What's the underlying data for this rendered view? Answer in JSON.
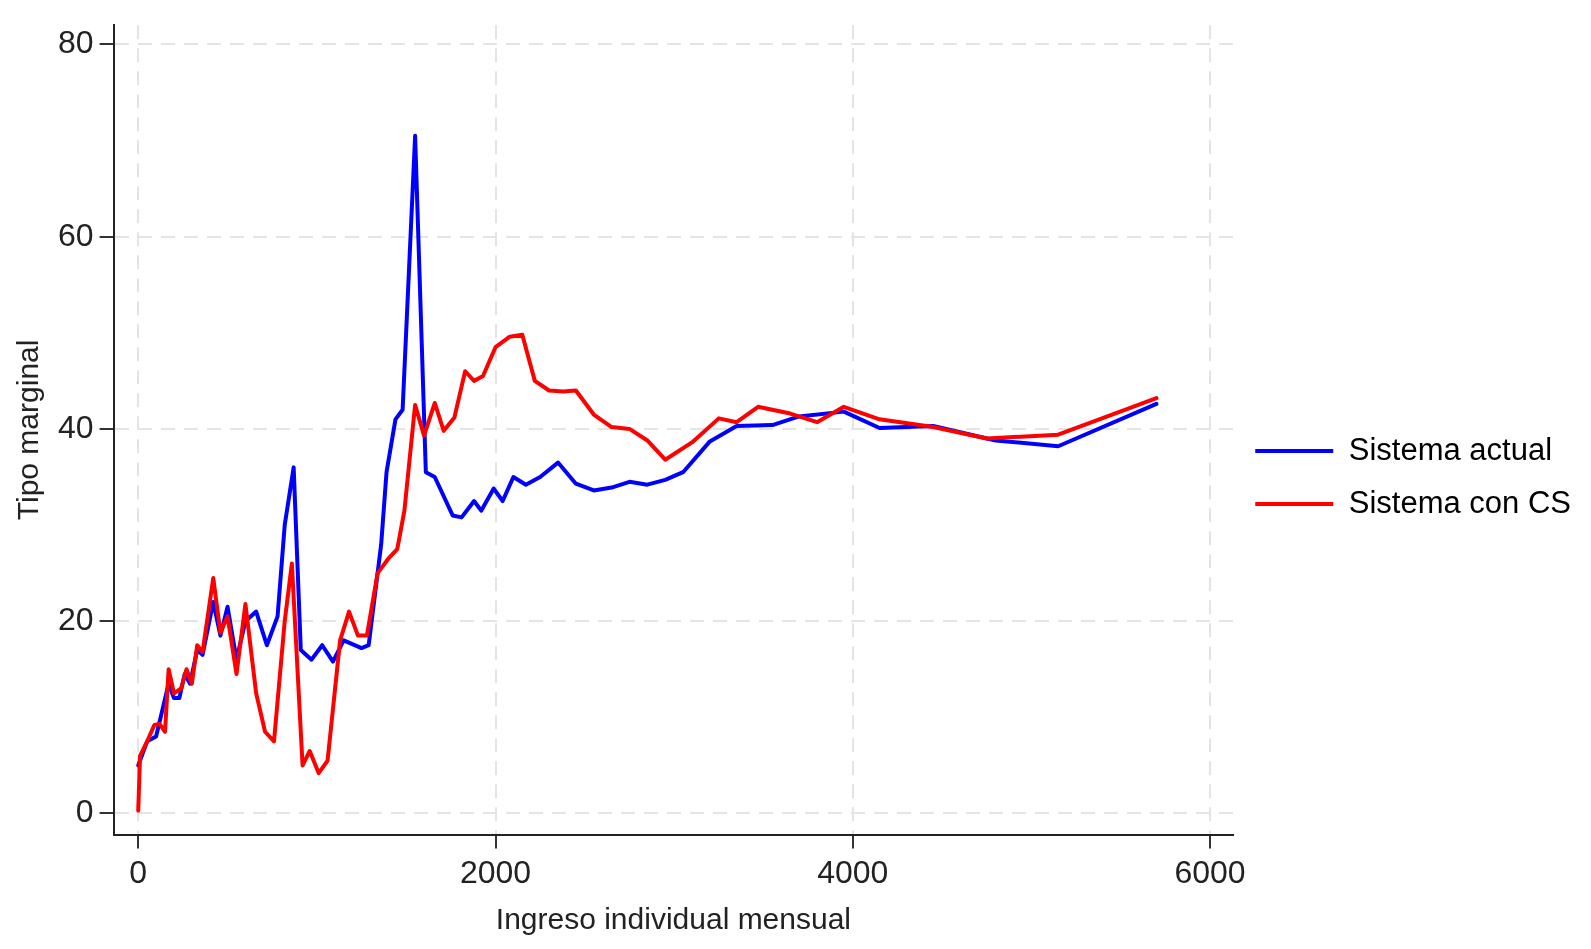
{
  "chart_data": {
    "type": "line",
    "xlabel": "Ingreso individual mensual",
    "ylabel": "Tipo marginal",
    "xlim": [
      -138,
      6130
    ],
    "xticks": [
      0,
      2000,
      4000,
      6000
    ],
    "ylim": [
      -2.2,
      82
    ],
    "yticks": [
      0,
      20,
      40,
      60,
      80
    ],
    "grid": true,
    "legend": "right",
    "marker": "none",
    "line_style": "solid",
    "series": [
      {
        "name": "Sistema actual",
        "color": "#0000ff",
        "x": [
          0,
          50,
          100,
          170,
          200,
          230,
          260,
          290,
          330,
          360,
          420,
          460,
          500,
          550,
          600,
          660,
          720,
          780,
          820,
          870,
          910,
          970,
          1030,
          1090,
          1150,
          1250,
          1290,
          1360,
          1390,
          1440,
          1480,
          1550,
          1610,
          1660,
          1760,
          1810,
          1880,
          1920,
          1990,
          2040,
          2100,
          2170,
          2250,
          2350,
          2450,
          2550,
          2650,
          2750,
          2850,
          2950,
          3050,
          3200,
          3350,
          3550,
          3700,
          3950,
          4150,
          4450,
          4800,
          5150,
          5700
        ],
        "values": [
          5,
          7.5,
          8,
          13.5,
          12,
          12,
          14.5,
          13.5,
          17,
          16.5,
          22,
          18.5,
          21.5,
          16,
          20,
          21,
          17.5,
          20.5,
          30,
          36,
          17,
          16,
          17.5,
          15.8,
          18,
          17.2,
          17.5,
          28,
          35.5,
          41,
          42,
          70.5,
          35.5,
          35,
          31,
          30.8,
          32.5,
          31.5,
          33.8,
          32.5,
          35,
          34.2,
          35,
          36.5,
          34.3,
          33.6,
          33.9,
          34.5,
          34.2,
          34.7,
          35.5,
          38.7,
          40.3,
          40.4,
          41.3,
          41.8,
          40.1,
          40.3,
          38.8,
          38.2,
          42.6
        ]
      },
      {
        "name": "Sistema con CS",
        "color": "#ff0000",
        "x": [
          0,
          10,
          50,
          90,
          120,
          150,
          170,
          200,
          240,
          270,
          300,
          330,
          360,
          420,
          460,
          500,
          550,
          600,
          660,
          710,
          760,
          820,
          860,
          920,
          960,
          1010,
          1060,
          1130,
          1180,
          1230,
          1280,
          1340,
          1400,
          1450,
          1490,
          1550,
          1600,
          1660,
          1710,
          1770,
          1830,
          1880,
          1930,
          2000,
          2080,
          2150,
          2220,
          2300,
          2380,
          2450,
          2550,
          2650,
          2750,
          2850,
          2950,
          3100,
          3250,
          3350,
          3470,
          3650,
          3800,
          3950,
          4150,
          4450,
          4750,
          5150,
          5700
        ],
        "values": [
          0.3,
          6,
          7.5,
          9.2,
          9.3,
          8.5,
          15,
          12.5,
          13,
          15,
          13.5,
          17.5,
          16.8,
          24.5,
          18.8,
          20.5,
          14.5,
          21.8,
          12.5,
          8.5,
          7.5,
          20,
          26,
          5,
          6.5,
          4.2,
          5.5,
          18,
          21,
          18.5,
          18.5,
          25,
          26.5,
          27.5,
          31.5,
          42.5,
          39.3,
          42.7,
          39.8,
          41.2,
          46,
          45,
          45.5,
          48.5,
          49.6,
          49.8,
          45,
          44,
          43.9,
          44,
          41.5,
          40.2,
          40,
          38.8,
          36.8,
          38.6,
          41.1,
          40.7,
          42.3,
          41.6,
          40.7,
          42.3,
          41,
          40.2,
          39,
          39.4,
          43.2
        ]
      }
    ]
  }
}
